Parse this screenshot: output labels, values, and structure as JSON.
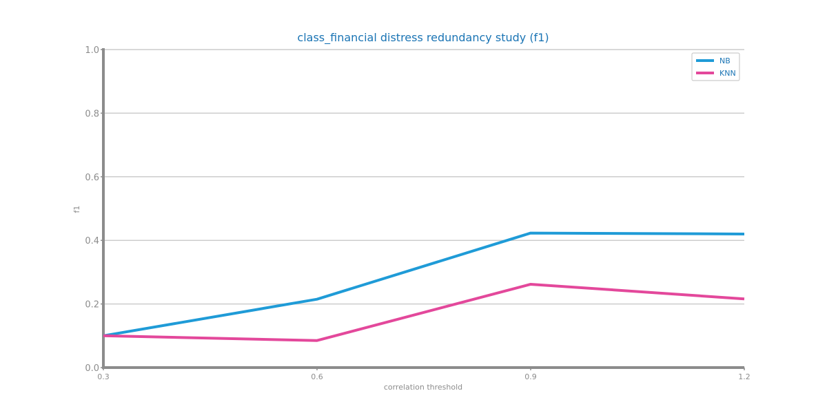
{
  "chart_data": {
    "type": "line",
    "title": "class_financial distress redundancy study (f1)",
    "xlabel": "correlation threshold",
    "ylabel": "f1",
    "x": [
      0.3,
      0.6,
      0.9,
      1.2
    ],
    "x_tick_labels": [
      "0.3",
      "0.6",
      "0.9",
      "1.2"
    ],
    "y_tick_labels": [
      "0.0",
      "0.2",
      "0.4",
      "0.6",
      "0.8",
      "1.0"
    ],
    "xlim": [
      0.3,
      1.2
    ],
    "ylim": [
      0,
      1
    ],
    "grid": "horizontal",
    "legend_position": "top-right",
    "series": [
      {
        "name": "NB",
        "color": "#1f9bd7",
        "values": [
          0.1,
          0.215,
          0.423,
          0.42
        ]
      },
      {
        "name": "KNN",
        "color": "#e3489b",
        "values": [
          0.1,
          0.085,
          0.262,
          0.216
        ]
      }
    ]
  }
}
